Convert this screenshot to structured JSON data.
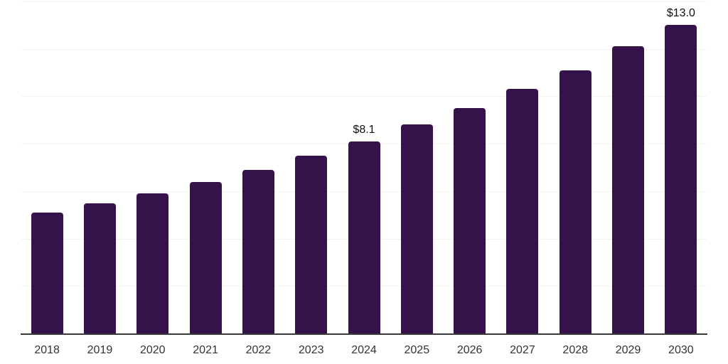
{
  "chart": {
    "background_color": "#ffffff",
    "bar_color": "#35124a",
    "gridline_color": "#f2f2f2",
    "axis_line_color": "#3a3a3a",
    "tick_label_color": "#333333",
    "data_label_color": "#111111"
  },
  "chart_data": {
    "type": "bar",
    "title": "",
    "xlabel": "",
    "ylabel": "",
    "categories": [
      "2018",
      "2019",
      "2020",
      "2021",
      "2022",
      "2023",
      "2024",
      "2025",
      "2026",
      "2027",
      "2028",
      "2029",
      "2030"
    ],
    "values": [
      5.1,
      5.5,
      5.9,
      6.4,
      6.9,
      7.5,
      8.1,
      8.8,
      9.5,
      10.3,
      11.1,
      12.1,
      13.0
    ],
    "data_labels": {
      "2024": "$8.1",
      "2030": "$13.0"
    },
    "ylim": [
      0,
      14
    ],
    "gridline_step": 2,
    "grid": "horizontal-only",
    "y_tick_labels_shown": false,
    "legend": "none"
  }
}
